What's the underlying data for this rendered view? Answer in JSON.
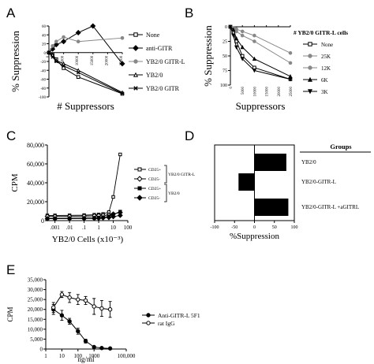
{
  "panels": {
    "A": "A",
    "B": "B",
    "C": "C",
    "D": "D",
    "E": "E"
  },
  "chart_data": [
    {
      "id": "A",
      "type": "line",
      "xlabel": "# Suppressors",
      "ylabel": "% Suppression",
      "x_ticks": [
        "0",
        "5000",
        "10000",
        "15000",
        "20000",
        "25000"
      ],
      "y_ticks": [
        "60",
        "40",
        "20",
        "0",
        "-20",
        "-40",
        "-60",
        "-80",
        "-100"
      ],
      "xlim": [
        0,
        25000
      ],
      "ylim": [
        -100,
        60
      ],
      "y_inverted": true,
      "series": [
        {
          "name": "None",
          "marker": "square-open",
          "x": [
            0,
            1250,
            2500,
            5000,
            10000,
            25000
          ],
          "y": [
            0,
            -5,
            -15,
            -35,
            -55,
            -93
          ]
        },
        {
          "name": "anti-GITR",
          "marker": "diamond-filled",
          "x": [
            0,
            1250,
            2500,
            5000,
            10000,
            15000,
            25000
          ],
          "y": [
            0,
            8,
            18,
            25,
            45,
            60,
            -25
          ]
        },
        {
          "name": "YB2/0 GITR-L",
          "marker": "circle-filled",
          "gray": true,
          "x": [
            0,
            1250,
            2500,
            5000,
            10000,
            25000
          ],
          "y": [
            0,
            15,
            25,
            35,
            25,
            33
          ]
        },
        {
          "name": "YB2/0",
          "marker": "triangle-open",
          "x": [
            0,
            1250,
            2500,
            5000,
            10000,
            25000
          ],
          "y": [
            0,
            -5,
            -18,
            -25,
            -40,
            -90
          ]
        },
        {
          "name": "YB2/0 GITR",
          "marker": "x",
          "x": [
            0,
            1250,
            2500,
            5000,
            10000,
            25000
          ],
          "y": [
            0,
            -10,
            -20,
            -30,
            -45,
            -92
          ]
        }
      ]
    },
    {
      "id": "B",
      "type": "line",
      "xlabel": "Suppressors",
      "ylabel": "% Suppression",
      "legend_title": "# YB2/0 GITR-L cells",
      "x_ticks": [
        "0",
        "5000",
        "10000",
        "15000",
        "20000",
        "25000"
      ],
      "y_ticks": [
        "0",
        "25",
        "50",
        "75",
        "100"
      ],
      "xlim": [
        0,
        25000
      ],
      "ylim": [
        0,
        100
      ],
      "series": [
        {
          "name": "None",
          "marker": "square-open",
          "x": [
            0,
            1250,
            2500,
            5000,
            10000,
            25000
          ],
          "y": [
            0,
            10,
            25,
            50,
            70,
            90
          ]
        },
        {
          "name": "25K",
          "marker": "circle-filled",
          "gray": true,
          "x": [
            0,
            1250,
            2500,
            5000,
            10000,
            25000
          ],
          "y": [
            0,
            2,
            4,
            8,
            15,
            45
          ]
        },
        {
          "name": "12K",
          "marker": "circle-filled",
          "gray": true,
          "x": [
            0,
            1250,
            2500,
            5000,
            10000,
            25000
          ],
          "y": [
            0,
            3,
            8,
            15,
            25,
            62
          ]
        },
        {
          "name": "6K",
          "marker": "triangle-filled",
          "x": [
            0,
            1250,
            2500,
            5000,
            10000,
            25000
          ],
          "y": [
            0,
            5,
            20,
            35,
            55,
            85
          ]
        },
        {
          "name": "3K",
          "marker": "triangle-down-filled",
          "x": [
            0,
            1250,
            2500,
            5000,
            10000,
            25000
          ],
          "y": [
            0,
            15,
            35,
            55,
            75,
            90
          ]
        }
      ]
    },
    {
      "id": "C",
      "type": "line",
      "xlabel": "YB2/0 Cells (x10⁻³)",
      "ylabel": "CPM",
      "x_scale": "log",
      "x_ticks": [
        ".001",
        ".01",
        ".1",
        "1",
        "10",
        "100"
      ],
      "x_tick_values": [
        0.001,
        0.01,
        0.1,
        1,
        10,
        100
      ],
      "y_ticks": [
        "0",
        "20,000",
        "40,000",
        "60,000",
        "80,000"
      ],
      "xlim": [
        0.0003,
        100
      ],
      "ylim": [
        0,
        80000
      ],
      "series": [
        {
          "name": "CD25+",
          "marker": "square-open",
          "x": [
            0.0003,
            0.001,
            0.01,
            0.1,
            0.5,
            1,
            2,
            5,
            10,
            30
          ],
          "y": [
            5500,
            5500,
            5600,
            5800,
            6200,
            6500,
            7000,
            9000,
            25000,
            70000
          ]
        },
        {
          "name": "CD25-",
          "marker": "diamond-open",
          "x": [
            0.0003,
            0.001,
            0.01,
            0.1,
            0.5,
            1,
            2,
            5,
            10,
            30
          ],
          "y": [
            4500,
            4500,
            4600,
            4800,
            5000,
            5200,
            5500,
            6000,
            7000,
            8500
          ]
        },
        {
          "name": "CD25+",
          "marker": "square-filled",
          "x": [
            0.0003,
            0.001,
            0.01,
            0.1,
            0.5,
            1,
            2,
            5,
            10,
            30
          ],
          "y": [
            2500,
            2500,
            2600,
            2800,
            3000,
            3200,
            3600,
            4500,
            6500,
            9500
          ]
        },
        {
          "name": "CD25-",
          "marker": "diamond-filled",
          "x": [
            0.0003,
            0.001,
            0.01,
            0.1,
            0.5,
            1,
            2,
            5,
            10,
            30
          ],
          "y": [
            2000,
            2000,
            2100,
            2200,
            2400,
            2600,
            2900,
            3300,
            4200,
            5500
          ]
        }
      ],
      "groups": [
        "YB2/0 GITR-L",
        "YB2/0"
      ]
    },
    {
      "id": "D",
      "type": "bar",
      "orientation": "horizontal",
      "xlabel": "%Suppression",
      "legend_title": "Groups",
      "x_ticks": [
        "-100",
        "-50",
        "0",
        "50",
        "100"
      ],
      "xlim": [
        -100,
        100
      ],
      "categories": [
        "YB2/0",
        "YB2/0-GITR-L",
        "YB2/0-GITR-L +aGITRL"
      ],
      "values": [
        80,
        -40,
        85
      ]
    },
    {
      "id": "E",
      "type": "line",
      "xlabel": "ng/ml",
      "ylabel": "CPM",
      "x_scale": "log",
      "x_ticks": [
        "1",
        "10",
        "100",
        "1000",
        "100,000"
      ],
      "x_tick_values": [
        1,
        10,
        100,
        1000,
        100000
      ],
      "y_ticks": [
        "0",
        "5,000",
        "10,000",
        "15,000",
        "20,000",
        "25,000",
        "30,000",
        "35,000"
      ],
      "xlim": [
        1,
        100000
      ],
      "ylim": [
        0,
        35000
      ],
      "series": [
        {
          "name": "Anti-GITR-L 5F1",
          "marker": "circle-filled",
          "x": [
            3,
            10,
            30,
            100,
            300,
            1000,
            3000,
            10000
          ],
          "y": [
            20000,
            17000,
            14000,
            9000,
            4000,
            1000,
            500,
            300
          ],
          "err": [
            2500,
            2500,
            1500,
            1500,
            1000,
            500,
            500,
            300
          ]
        },
        {
          "name": "rat IgG",
          "marker": "circle-open",
          "x": [
            3,
            10,
            30,
            100,
            300,
            1000,
            3000,
            10000
          ],
          "y": [
            21000,
            27500,
            26000,
            25000,
            24500,
            21500,
            20500,
            20000
          ],
          "err": [
            2500,
            1500,
            2500,
            2500,
            2000,
            4000,
            4000,
            4000
          ]
        }
      ]
    }
  ]
}
